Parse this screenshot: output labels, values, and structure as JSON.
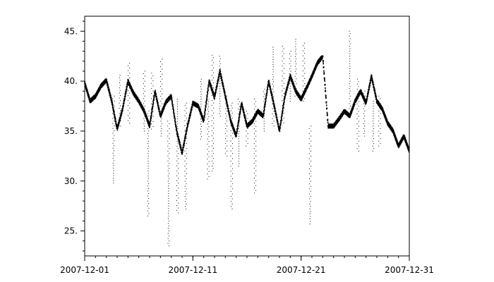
{
  "chart_data": {
    "type": "scatter",
    "title": "",
    "xlabel": "",
    "ylabel": "",
    "x_range": [
      "2007-12-01",
      "2007-12-31"
    ],
    "ylim": [
      22.5,
      46.5
    ],
    "x_ticks": [
      "2007-12-01",
      "2007-12-11",
      "2007-12-21",
      "2007-12-31"
    ],
    "y_ticks": [
      "25.",
      "30.",
      "35.",
      "40.",
      "45."
    ],
    "y_tick_values": [
      25,
      30,
      35,
      40,
      45
    ],
    "y_minor_step": 1,
    "grid": false,
    "legend": "none",
    "marker_color": "#000000",
    "series": [
      {
        "x": [
          "2007-12-01 00:00",
          "2007-12-01 12:00",
          "2007-12-02 00:00",
          "2007-12-02 12:00",
          "2007-12-03 00:00",
          "2007-12-03 12:00",
          "2007-12-04 00:00",
          "2007-12-04 12:00",
          "2007-12-05 00:00",
          "2007-12-05 12:00",
          "2007-12-06 00:00",
          "2007-12-06 12:00",
          "2007-12-07 00:00",
          "2007-12-07 12:00",
          "2007-12-08 00:00",
          "2007-12-08 12:00",
          "2007-12-09 00:00",
          "2007-12-09 12:00",
          "2007-12-10 00:00",
          "2007-12-10 12:00",
          "2007-12-11 00:00",
          "2007-12-11 12:00",
          "2007-12-12 00:00",
          "2007-12-12 12:00",
          "2007-12-13 00:00",
          "2007-12-13 12:00",
          "2007-12-14 00:00",
          "2007-12-14 12:00",
          "2007-12-15 00:00",
          "2007-12-15 12:00",
          "2007-12-16 00:00",
          "2007-12-16 12:00",
          "2007-12-17 00:00",
          "2007-12-17 12:00",
          "2007-12-18 00:00",
          "2007-12-18 12:00",
          "2007-12-19 00:00",
          "2007-12-19 12:00",
          "2007-12-20 00:00",
          "2007-12-20 12:00",
          "2007-12-21 00:00",
          "2007-12-21 12:00",
          "2007-12-22 00:00",
          "2007-12-22 12:00",
          "2007-12-23 00:00",
          "2007-12-23 12:00",
          "2007-12-24 00:00",
          "2007-12-24 12:00",
          "2007-12-25 00:00",
          "2007-12-25 12:00",
          "2007-12-26 00:00",
          "2007-12-26 12:00",
          "2007-12-27 00:00",
          "2007-12-27 12:00",
          "2007-12-28 00:00",
          "2007-12-28 12:00",
          "2007-12-29 00:00",
          "2007-12-29 12:00",
          "2007-12-30 00:00",
          "2007-12-30 12:00",
          "2007-12-31 00:00"
        ],
        "y": [
          39.8,
          38.0,
          38.5,
          39.5,
          40.1,
          38.0,
          35.2,
          37.2,
          40.0,
          38.8,
          38.0,
          37.0,
          35.5,
          39.0,
          36.5,
          37.9,
          38.5,
          35.0,
          32.8,
          35.5,
          37.8,
          37.5,
          36.0,
          40.0,
          38.4,
          41.0,
          38.5,
          36.0,
          34.5,
          37.8,
          35.5,
          36.0,
          37.0,
          36.5,
          40.0,
          37.6,
          35.0,
          38.5,
          40.5,
          39.0,
          38.2,
          39.3,
          40.5,
          41.8,
          42.5,
          35.5,
          35.5,
          36.2,
          37.0,
          36.5,
          38.0,
          39.0,
          37.8,
          40.5,
          38.0,
          37.2,
          35.8,
          35.0,
          33.5,
          34.5,
          33.0
        ],
        "dense_y_max": 42.5,
        "spikes": [
          {
            "x": "2007-12-03 16:00",
            "y_min": 29.8,
            "y_max": 38.5
          },
          {
            "x": "2007-12-04 06:00",
            "y_min": 35.5,
            "y_max": 40.6
          },
          {
            "x": "2007-12-05 02:00",
            "y_min": 35.8,
            "y_max": 41.8
          },
          {
            "x": "2007-12-06 12:00",
            "y_min": 35.0,
            "y_max": 41.0
          },
          {
            "x": "2007-12-06 21:00",
            "y_min": 26.5,
            "y_max": 37.0
          },
          {
            "x": "2007-12-07 06:00",
            "y_min": 35.2,
            "y_max": 40.8
          },
          {
            "x": "2007-12-08 02:00",
            "y_min": 34.5,
            "y_max": 42.2
          },
          {
            "x": "2007-12-08 18:00",
            "y_min": 23.5,
            "y_max": 36.0
          },
          {
            "x": "2007-12-09 14:00",
            "y_min": 26.8,
            "y_max": 38.2
          },
          {
            "x": "2007-12-10 08:00",
            "y_min": 27.2,
            "y_max": 37.8
          },
          {
            "x": "2007-12-11 18:00",
            "y_min": 34.2,
            "y_max": 40.2
          },
          {
            "x": "2007-12-12 10:00",
            "y_min": 30.2,
            "y_max": 38.2
          },
          {
            "x": "2007-12-12 20:00",
            "y_min": 31.0,
            "y_max": 42.6
          },
          {
            "x": "2007-12-13 12:00",
            "y_min": 36.5,
            "y_max": 42.5
          },
          {
            "x": "2007-12-14 02:00",
            "y_min": 32.5,
            "y_max": 38.5
          },
          {
            "x": "2007-12-14 14:00",
            "y_min": 27.2,
            "y_max": 37.8
          },
          {
            "x": "2007-12-15 06:00",
            "y_min": 31.5,
            "y_max": 38.2
          },
          {
            "x": "2007-12-16 00:00",
            "y_min": 33.5,
            "y_max": 37.0
          },
          {
            "x": "2007-12-16 18:00",
            "y_min": 28.8,
            "y_max": 38.2
          },
          {
            "x": "2007-12-17 14:00",
            "y_min": 35.0,
            "y_max": 39.2
          },
          {
            "x": "2007-12-18 10:00",
            "y_min": 35.5,
            "y_max": 43.4
          },
          {
            "x": "2007-12-19 08:00",
            "y_min": 35.8,
            "y_max": 43.5
          },
          {
            "x": "2007-12-20 00:00",
            "y_min": 38.0,
            "y_max": 43.0
          },
          {
            "x": "2007-12-20 12:00",
            "y_min": 38.5,
            "y_max": 44.2
          },
          {
            "x": "2007-12-21 06:00",
            "y_min": 38.0,
            "y_max": 43.8
          },
          {
            "x": "2007-12-21 20:00",
            "y_min": 25.7,
            "y_max": 35.5
          },
          {
            "x": "2007-12-25 12:00",
            "y_min": 36.5,
            "y_max": 45.0
          },
          {
            "x": "2007-12-26 06:00",
            "y_min": 33.0,
            "y_max": 40.2
          },
          {
            "x": "2007-12-26 20:00",
            "y_min": 34.5,
            "y_max": 39.0
          },
          {
            "x": "2007-12-27 16:00",
            "y_min": 33.0,
            "y_max": 38.0
          },
          {
            "x": "2007-12-28 06:00",
            "y_min": 33.5,
            "y_max": 38.5
          }
        ]
      }
    ]
  }
}
